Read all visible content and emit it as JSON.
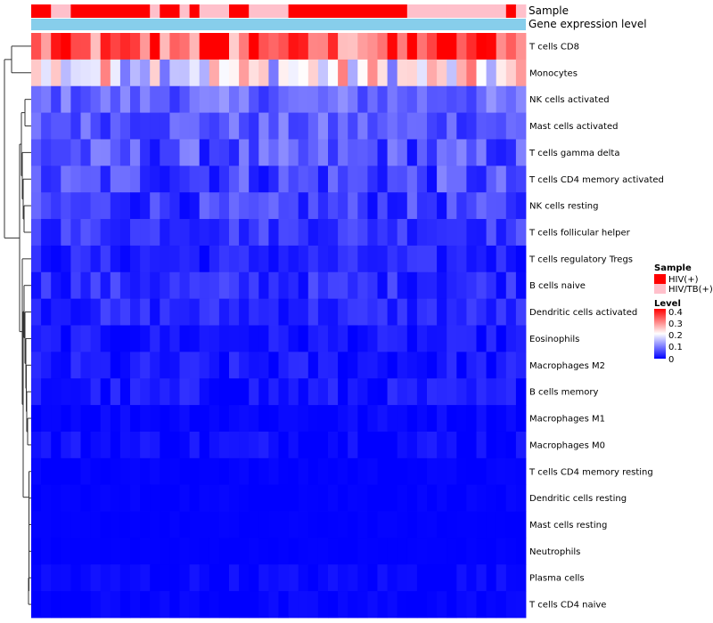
{
  "chart_data": {
    "type": "heatmap",
    "title": "",
    "n_samples": 50,
    "row_labels": [
      "T cells CD8",
      "Monocytes",
      "NK cells activated",
      "Mast cells activated",
      "T cells gamma delta",
      "T cells CD4 memory activated",
      "NK cells resting",
      "T cells follicular helper",
      "T cells regulatory  Tregs",
      "B cells naive",
      "Dendritic cells activated",
      "Eosinophils",
      "Macrophages M2",
      "B cells memory",
      "Macrophages M1",
      "Macrophages M0",
      "T cells CD4 memory resting",
      "Dendritic cells resting",
      "Mast cells resting",
      "Neutrophils",
      "Plasma cells",
      "T cells CD4 naive"
    ],
    "annotation_rows": [
      "Sample",
      "Gene expression level"
    ],
    "sample_groups": [
      0,
      0,
      1,
      1,
      0,
      0,
      0,
      0,
      0,
      0,
      0,
      0,
      1,
      0,
      0,
      1,
      0,
      1,
      1,
      1,
      0,
      0,
      1,
      1,
      1,
      1,
      0,
      0,
      0,
      0,
      0,
      0,
      0,
      0,
      0,
      0,
      0,
      0,
      1,
      1,
      1,
      1,
      1,
      1,
      1,
      1,
      1,
      1,
      0,
      1
    ],
    "sample_legend": {
      "title": "Sample",
      "entries": [
        {
          "label": "HIV(+)",
          "color": "#ff0000"
        },
        {
          "label": "HIV/TB(+)",
          "color": "#ffc0cb"
        }
      ]
    },
    "expression_level_color": "#87ceeb",
    "row_profiles": [
      {
        "base": 0.31,
        "spread": 0.09
      },
      {
        "base": 0.2,
        "spread": 0.11
      },
      {
        "base": 0.08,
        "spread": 0.04
      },
      {
        "base": 0.07,
        "spread": 0.04
      },
      {
        "base": 0.06,
        "spread": 0.05
      },
      {
        "base": 0.055,
        "spread": 0.05
      },
      {
        "base": 0.045,
        "spread": 0.04
      },
      {
        "base": 0.045,
        "spread": 0.03
      },
      {
        "base": 0.025,
        "spread": 0.025
      },
      {
        "base": 0.035,
        "spread": 0.03
      },
      {
        "base": 0.03,
        "spread": 0.025
      },
      {
        "base": 0.015,
        "spread": 0.02
      },
      {
        "base": 0.015,
        "spread": 0.025
      },
      {
        "base": 0.015,
        "spread": 0.025
      },
      {
        "base": 0.006,
        "spread": 0.01
      },
      {
        "base": 0.01,
        "spread": 0.02
      },
      {
        "base": 0.002,
        "spread": 0.004
      },
      {
        "base": 0.002,
        "spread": 0.004
      },
      {
        "base": 0.001,
        "spread": 0.002
      },
      {
        "base": 0.001,
        "spread": 0.002
      },
      {
        "base": 0.006,
        "spread": 0.012
      },
      {
        "base": 0.003,
        "spread": 0.008
      }
    ],
    "color_scale": {
      "title": "Level",
      "min": 0,
      "max": 0.4,
      "ticks": [
        "0.4",
        "0.3",
        "0.2",
        "0.1",
        "0"
      ],
      "low": "#0000ff",
      "mid": "#ffffff",
      "high": "#ff0000"
    },
    "dendrogram": "hierarchical clustering of rows"
  }
}
